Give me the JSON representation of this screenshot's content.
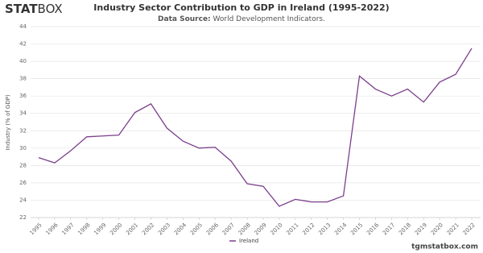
{
  "logo": {
    "bold": "STAT",
    "light": "BOX"
  },
  "footer": "tgmstatbox.com",
  "chart_data": {
    "type": "line",
    "title": "Industry Sector Contribution to GDP in Ireland (1995-2022)",
    "subtitle_label": "Data Source:",
    "subtitle": "World Development Indicators.",
    "y_label": "Industry (% of GDP)",
    "categories": [
      "1995",
      "1996",
      "1997",
      "1998",
      "1999",
      "2000",
      "2001",
      "2002",
      "2003",
      "2004",
      "2005",
      "2006",
      "2007",
      "2008",
      "2009",
      "2010",
      "2011",
      "2012",
      "2013",
      "2014",
      "2015",
      "2016",
      "2017",
      "2018",
      "2019",
      "2020",
      "2021",
      "2022"
    ],
    "series": [
      {
        "name": "Ireland",
        "color": "#7b3f8c",
        "values": [
          28.9,
          28.3,
          29.7,
          31.3,
          31.4,
          31.5,
          34.1,
          35.1,
          32.3,
          30.8,
          30.0,
          30.1,
          28.5,
          25.9,
          25.6,
          23.3,
          24.1,
          23.8,
          23.8,
          24.5,
          38.3,
          36.8,
          36.0,
          36.8,
          35.3,
          37.6,
          38.5,
          41.5
        ]
      }
    ],
    "ylim": [
      22,
      44
    ],
    "yticks": [
      22,
      24,
      26,
      28,
      30,
      32,
      34,
      36,
      38,
      40,
      42,
      44
    ],
    "grid": true,
    "legend": "bottom"
  }
}
